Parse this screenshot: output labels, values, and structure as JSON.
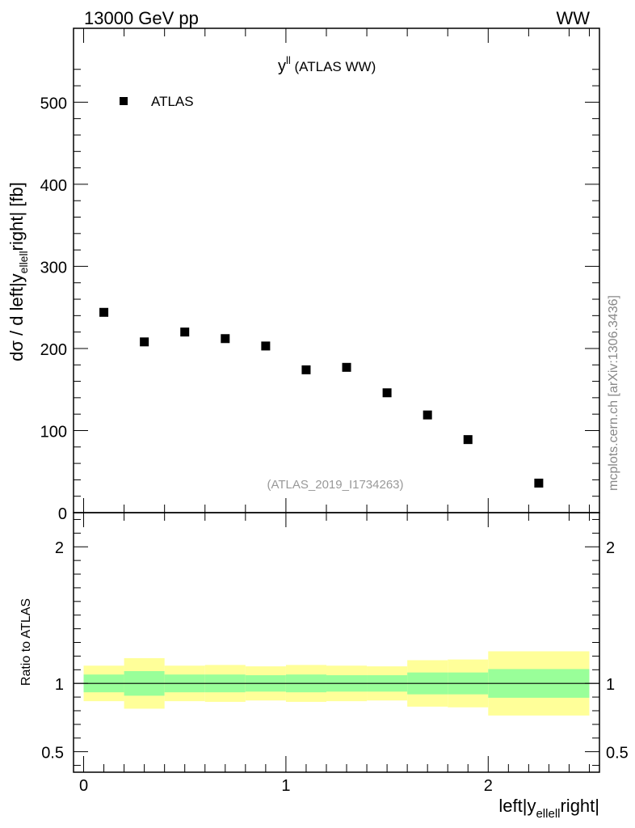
{
  "header": {
    "energy_label": "13000 GeV pp",
    "process_label": "WW"
  },
  "side_label": "mcplots.cern.ch [arXiv:1306.3436]",
  "chart_data": [
    {
      "type": "scatter",
      "panel": "main",
      "title_main": "y",
      "title_sup": "ll",
      "title_rest": " (ATLAS WW)",
      "ylabel_prefix": "dσ / d left|y",
      "ylabel_sub": "ellell",
      "ylabel_suffix": "right| [fb]",
      "ylim": [
        0,
        590
      ],
      "yticks": [
        0,
        100,
        200,
        300,
        400,
        500
      ],
      "ytick_labels": [
        "0",
        "100",
        "200",
        "300",
        "400",
        "500"
      ],
      "xlim": [
        -0.05,
        2.55
      ],
      "legend": {
        "entries": [
          "ATLAS"
        ],
        "placement": "top-left"
      },
      "watermark": "(ATLAS_2019_I1734263)",
      "series": [
        {
          "name": "ATLAS",
          "x": [
            0.1,
            0.3,
            0.5,
            0.7,
            0.9,
            1.1,
            1.3,
            1.5,
            1.7,
            1.9,
            2.25
          ],
          "values": [
            244,
            208,
            220,
            212,
            203,
            174,
            177,
            146,
            119,
            89,
            36
          ]
        }
      ]
    },
    {
      "type": "area",
      "panel": "ratio",
      "ylabel": "Ratio to ATLAS",
      "xlabel_prefix": "left|y",
      "xlabel_sub": "ellell",
      "xlabel_suffix": "right|",
      "xlim": [
        -0.05,
        2.55
      ],
      "ylim": [
        0.35,
        2.25
      ],
      "yticks": [
        0.5,
        1,
        2
      ],
      "ytick_labels": [
        "0.5",
        "1",
        "2"
      ],
      "xticks": [
        0,
        1,
        2
      ],
      "xtick_labels": [
        "0",
        "1",
        "2"
      ],
      "reference_line": 1,
      "band_colors": {
        "inner": "#99ff99",
        "outer": "#ffff99"
      },
      "bins": [
        {
          "lo": 0.0,
          "hi": 0.2,
          "inner": [
            0.935,
            1.065
          ],
          "outer": [
            0.87,
            1.13
          ]
        },
        {
          "lo": 0.2,
          "hi": 0.4,
          "inner": [
            0.91,
            1.09
          ],
          "outer": [
            0.815,
            1.185
          ]
        },
        {
          "lo": 0.4,
          "hi": 0.6,
          "inner": [
            0.935,
            1.065
          ],
          "outer": [
            0.87,
            1.13
          ]
        },
        {
          "lo": 0.6,
          "hi": 0.8,
          "inner": [
            0.935,
            1.065
          ],
          "outer": [
            0.865,
            1.135
          ]
        },
        {
          "lo": 0.8,
          "hi": 1.0,
          "inner": [
            0.94,
            1.06
          ],
          "outer": [
            0.875,
            1.125
          ]
        },
        {
          "lo": 1.0,
          "hi": 1.2,
          "inner": [
            0.935,
            1.065
          ],
          "outer": [
            0.865,
            1.135
          ]
        },
        {
          "lo": 1.2,
          "hi": 1.4,
          "inner": [
            0.94,
            1.06
          ],
          "outer": [
            0.87,
            1.13
          ]
        },
        {
          "lo": 1.4,
          "hi": 1.6,
          "inner": [
            0.94,
            1.06
          ],
          "outer": [
            0.875,
            1.125
          ]
        },
        {
          "lo": 1.6,
          "hi": 1.8,
          "inner": [
            0.92,
            1.08
          ],
          "outer": [
            0.83,
            1.17
          ]
        },
        {
          "lo": 1.8,
          "hi": 2.0,
          "inner": [
            0.92,
            1.08
          ],
          "outer": [
            0.825,
            1.175
          ]
        },
        {
          "lo": 2.0,
          "hi": 2.5,
          "inner": [
            0.895,
            1.105
          ],
          "outer": [
            0.765,
            1.235
          ]
        }
      ]
    }
  ]
}
